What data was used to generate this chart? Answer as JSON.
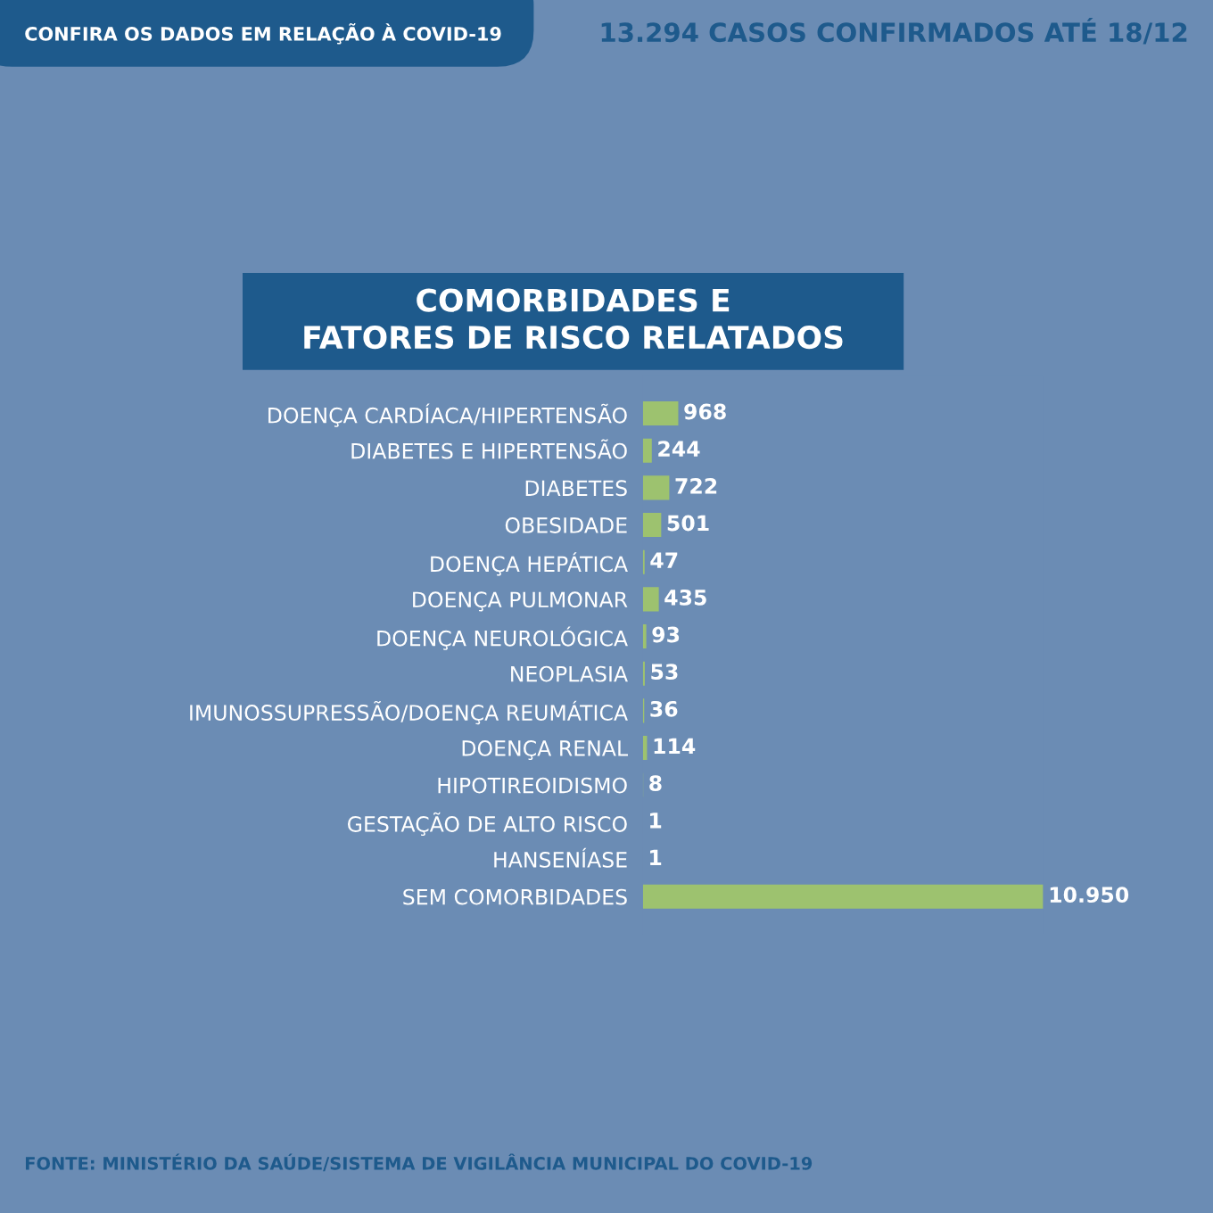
{
  "chart_data": {
    "type": "bar",
    "orientation": "horizontal",
    "title": "COMORBIDADES E\nFATORES DE RISCO RELATADOS",
    "categories": [
      "DOENÇA CARDÍACA/HIPERTENSÃO",
      "DIABETES E HIPERTENSÃO",
      "DIABETES",
      "OBESIDADE",
      "DOENÇA HEPÁTICA",
      "DOENÇA PULMONAR",
      "DOENÇA NEUROLÓGICA",
      "NEOPLASIA",
      "IMUNOSSUPRESSÃO/DOENÇA REUMÁTICA",
      "DOENÇA RENAL",
      "HIPOTIREOIDISMO",
      "GESTAÇÃO DE ALTO RISCO",
      "HANSENÍASE",
      "SEM COMORBIDADES"
    ],
    "values": [
      968,
      244,
      722,
      501,
      47,
      435,
      93,
      53,
      36,
      114,
      8,
      1,
      1,
      10950
    ],
    "value_labels": [
      "968",
      "244",
      "722",
      "501",
      "47",
      "435",
      "93",
      "53",
      "36",
      "114",
      "8",
      "1",
      "1",
      "10.950"
    ],
    "color": "#9dc26f",
    "grid": false,
    "legend": false,
    "annotations": [
      "CONFIRA OS DADOS EM RELAÇÃO À COVID-19",
      "13.294 CASOS CONFIRMADOS ATÉ 18/12",
      "FONTE: MINISTÉRIO DA SAÚDE/SISTEMA DE VIGILÂNCIA MUNICIPAL DO COVID-19"
    ]
  }
}
